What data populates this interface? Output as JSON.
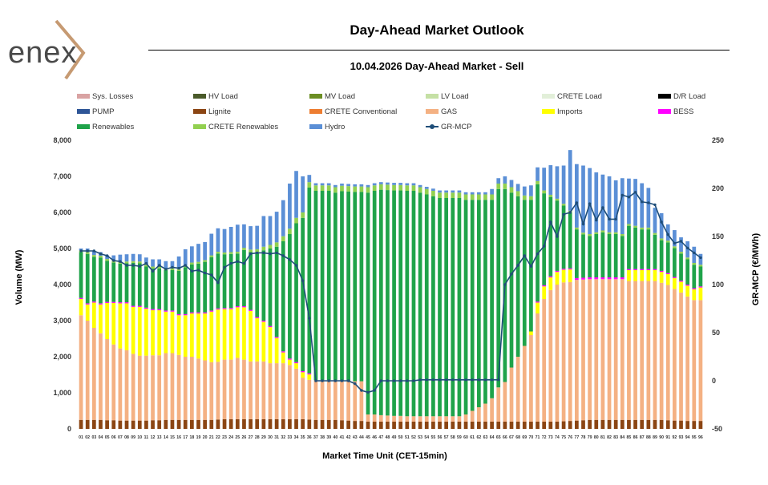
{
  "logo": {
    "text": "enex"
  },
  "header": {
    "title": "Day-Ahead Market Outlook"
  },
  "colors": {
    "Sys. Losses": "#d9a3a3",
    "HV Load": "#4a5a2a",
    "MV Load": "#6b8e23",
    "LV Load": "#c5e0a5",
    "CRETE Load": "#e2efd9",
    "D/R Load": "#000000",
    "PUMP": "#2e5597",
    "Lignite": "#8b4513",
    "CRETE Conventional": "#ed7d31",
    "GAS": "#f4b183",
    "Imports": "#ffff00",
    "BESS": "#ff00ff",
    "Renewables": "#1fa34a",
    "CRETE Renewables": "#92d050",
    "Hydro": "#5b8fd6",
    "GR-MCP": "#1f4e79"
  },
  "legend": [
    "Sys. Losses",
    "HV Load",
    "MV Load",
    "LV Load",
    "CRETE Load",
    "D/R Load",
    "PUMP",
    "Lignite",
    "CRETE Conventional",
    "GAS",
    "Imports",
    "BESS",
    "Renewables",
    "CRETE Renewables",
    "Hydro",
    "GR-MCP"
  ],
  "chart_data": {
    "type": "bar",
    "subtitle": "10.04.2026  Day-Ahead Market - Sell",
    "xlabel": "Market Time Unit (CET-15min)",
    "ylabel": "Volume (MW)",
    "ylabel_right": "GR-MCP (€/MWh)",
    "ylim": [
      0,
      8000
    ],
    "ylim_right": [
      -50,
      250
    ],
    "yticks": [
      "0",
      "1,000",
      "2,000",
      "3,000",
      "4,000",
      "5,000",
      "6,000",
      "7,000",
      "8,000"
    ],
    "yticks_right": [
      "-50",
      "0",
      "50",
      "100",
      "150",
      "200",
      "250"
    ],
    "categories": [
      "01",
      "02",
      "03",
      "04",
      "05",
      "06",
      "07",
      "08",
      "09",
      "10",
      "11",
      "12",
      "13",
      "14",
      "15",
      "16",
      "17",
      "18",
      "19",
      "20",
      "21",
      "22",
      "23",
      "24",
      "25",
      "26",
      "27",
      "28",
      "29",
      "30",
      "31",
      "32",
      "33",
      "34",
      "35",
      "36",
      "37",
      "38",
      "39",
      "40",
      "41",
      "42",
      "43",
      "44",
      "45",
      "46",
      "47",
      "48",
      "49",
      "50",
      "51",
      "52",
      "53",
      "54",
      "55",
      "56",
      "57",
      "58",
      "59",
      "60",
      "61",
      "62",
      "63",
      "64",
      "65",
      "66",
      "67",
      "68",
      "69",
      "70",
      "71",
      "72",
      "73",
      "74",
      "75",
      "76",
      "77",
      "78",
      "79",
      "80",
      "81",
      "82",
      "83",
      "84",
      "85",
      "86",
      "87",
      "88",
      "89",
      "90",
      "91",
      "92",
      "93",
      "94",
      "95",
      "96"
    ],
    "series": [
      {
        "name": "Lignite",
        "values": [
          250,
          250,
          250,
          250,
          240,
          240,
          230,
          230,
          230,
          230,
          230,
          240,
          240,
          250,
          250,
          250,
          250,
          250,
          250,
          250,
          250,
          260,
          270,
          270,
          270,
          270,
          270,
          270,
          270,
          270,
          270,
          270,
          270,
          270,
          270,
          260,
          250,
          250,
          250,
          250,
          240,
          230,
          220,
          220,
          200,
          200,
          200,
          200,
          200,
          200,
          200,
          200,
          200,
          200,
          200,
          200,
          200,
          200,
          200,
          200,
          200,
          200,
          200,
          200,
          200,
          200,
          200,
          200,
          200,
          200,
          200,
          200,
          200,
          200,
          210,
          220,
          230,
          240,
          250,
          250,
          250,
          250,
          250,
          250,
          250,
          250,
          250,
          250,
          250,
          250,
          240,
          230,
          230,
          220,
          220,
          220
        ]
      },
      {
        "name": "GAS",
        "values": [
          2900,
          2750,
          2550,
          2400,
          2250,
          2100,
          2000,
          1950,
          1850,
          1800,
          1800,
          1800,
          1800,
          1850,
          1850,
          1800,
          1750,
          1750,
          1700,
          1650,
          1600,
          1600,
          1650,
          1650,
          1700,
          1650,
          1600,
          1600,
          1600,
          1550,
          1550,
          1550,
          1500,
          1400,
          1150,
          1100,
          1100,
          1100,
          1100,
          1100,
          1100,
          1100,
          1100,
          1100,
          200,
          200,
          180,
          170,
          160,
          160,
          150,
          150,
          150,
          150,
          150,
          150,
          150,
          150,
          150,
          200,
          300,
          400,
          500,
          650,
          950,
          1100,
          1500,
          1800,
          2100,
          2400,
          3000,
          3400,
          3650,
          3800,
          3850,
          3850,
          3900,
          3900,
          3900,
          3900,
          3900,
          3900,
          3900,
          3900,
          3850,
          3850,
          3850,
          3850,
          3850,
          3800,
          3750,
          3650,
          3550,
          3450,
          3350,
          3350
        ]
      },
      {
        "name": "Imports",
        "values": [
          450,
          450,
          700,
          800,
          1000,
          1150,
          1250,
          1300,
          1300,
          1350,
          1300,
          1250,
          1250,
          1150,
          1150,
          1100,
          1150,
          1200,
          1250,
          1300,
          1400,
          1450,
          1400,
          1400,
          1400,
          1450,
          1400,
          1200,
          1100,
          1000,
          700,
          300,
          150,
          150,
          150,
          150,
          0,
          0,
          0,
          0,
          0,
          0,
          0,
          0,
          0,
          0,
          0,
          0,
          0,
          0,
          0,
          0,
          0,
          0,
          0,
          0,
          0,
          0,
          0,
          0,
          0,
          0,
          0,
          0,
          0,
          0,
          0,
          0,
          0,
          100,
          300,
          350,
          350,
          350,
          350,
          350,
          0,
          0,
          0,
          0,
          0,
          0,
          0,
          0,
          300,
          300,
          300,
          300,
          300,
          300,
          300,
          300,
          300,
          300,
          300,
          350
        ]
      },
      {
        "name": "BESS",
        "values": [
          30,
          30,
          30,
          30,
          30,
          30,
          30,
          30,
          30,
          30,
          30,
          30,
          30,
          30,
          30,
          30,
          30,
          30,
          30,
          30,
          30,
          30,
          30,
          30,
          30,
          30,
          30,
          30,
          30,
          30,
          30,
          30,
          30,
          30,
          30,
          30,
          0,
          0,
          0,
          0,
          0,
          0,
          0,
          0,
          0,
          0,
          0,
          0,
          0,
          0,
          0,
          0,
          0,
          0,
          0,
          0,
          0,
          0,
          0,
          0,
          0,
          0,
          0,
          0,
          0,
          0,
          0,
          0,
          0,
          0,
          30,
          30,
          30,
          30,
          30,
          30,
          50,
          50,
          50,
          50,
          50,
          50,
          50,
          50,
          30,
          30,
          30,
          30,
          30,
          30,
          30,
          30,
          30,
          30,
          30,
          30
        ]
      },
      {
        "name": "Renewables",
        "values": [
          1270,
          1370,
          1240,
          1270,
          1140,
          1090,
          1070,
          1080,
          1190,
          1180,
          1140,
          1130,
          1130,
          1120,
          1120,
          1200,
          1300,
          1330,
          1350,
          1400,
          1480,
          1520,
          1490,
          1500,
          1460,
          1560,
          1600,
          1800,
          1950,
          2150,
          2500,
          3050,
          3450,
          3850,
          4250,
          5150,
          5250,
          5250,
          5250,
          5200,
          5250,
          5250,
          5250,
          5250,
          6150,
          6200,
          6250,
          6250,
          6250,
          6250,
          6250,
          6250,
          6200,
          6150,
          6100,
          6050,
          6050,
          6050,
          6050,
          5950,
          5850,
          5750,
          5650,
          5500,
          5500,
          5350,
          4850,
          4450,
          4050,
          3650,
          3250,
          2550,
          2200,
          1950,
          1750,
          1550,
          1350,
          1200,
          1150,
          1200,
          1250,
          1200,
          1200,
          1150,
          1200,
          1150,
          1100,
          1100,
          950,
          850,
          850,
          800,
          750,
          700,
          650,
          550
        ]
      },
      {
        "name": "CRETE Renewables",
        "values": [
          50,
          50,
          50,
          50,
          50,
          50,
          50,
          50,
          50,
          50,
          50,
          50,
          50,
          50,
          50,
          50,
          50,
          50,
          50,
          50,
          50,
          50,
          50,
          50,
          50,
          60,
          70,
          80,
          100,
          100,
          120,
          140,
          150,
          150,
          150,
          150,
          150,
          150,
          150,
          150,
          150,
          150,
          150,
          150,
          150,
          150,
          150,
          150,
          150,
          150,
          150,
          150,
          150,
          150,
          150,
          150,
          150,
          150,
          150,
          150,
          150,
          150,
          150,
          150,
          150,
          150,
          150,
          140,
          120,
          100,
          90,
          80,
          60,
          50,
          50,
          50,
          50,
          50,
          50,
          50,
          50,
          50,
          50,
          50,
          50,
          50,
          50,
          50,
          50,
          50,
          50,
          50,
          50,
          50,
          50,
          50
        ]
      },
      {
        "name": "Hydro",
        "values": [
          50,
          100,
          100,
          100,
          100,
          150,
          200,
          200,
          200,
          200,
          200,
          200,
          200,
          200,
          200,
          350,
          450,
          450,
          500,
          500,
          600,
          650,
          650,
          700,
          750,
          650,
          650,
          650,
          850,
          800,
          850,
          1000,
          1250,
          1300,
          1000,
          200,
          60,
          60,
          60,
          60,
          60,
          60,
          60,
          60,
          60,
          60,
          60,
          60,
          60,
          60,
          60,
          60,
          60,
          60,
          60,
          60,
          60,
          60,
          60,
          60,
          60,
          60,
          60,
          150,
          150,
          200,
          200,
          200,
          250,
          300,
          380,
          630,
          820,
          900,
          1060,
          1680,
          1760,
          1860,
          1830,
          1660,
          1550,
          1550,
          1440,
          1550,
          1260,
          1300,
          1230,
          1100,
          700,
          700,
          450,
          450,
          400,
          450,
          450,
          300
        ]
      }
    ],
    "mcp": [
      135,
      135,
      135,
      132,
      130,
      125,
      124,
      120,
      120,
      119,
      122,
      114,
      120,
      116,
      118,
      117,
      120,
      114,
      115,
      112,
      110,
      102,
      118,
      122,
      124,
      122,
      132,
      133,
      133,
      132,
      133,
      130,
      126,
      120,
      104,
      65,
      0,
      0,
      0,
      0,
      0,
      0,
      -3,
      -10,
      -12,
      -10,
      0,
      0,
      0,
      0,
      0,
      0,
      1,
      1,
      1,
      1,
      1,
      1,
      1,
      1,
      1,
      1,
      1,
      1,
      1,
      100,
      111,
      120,
      130,
      119,
      132,
      140,
      165,
      150,
      173,
      175,
      185,
      163,
      184,
      167,
      180,
      168,
      168,
      193,
      191,
      196,
      186,
      185,
      183,
      165,
      152,
      143,
      145,
      138,
      133,
      128
    ]
  }
}
